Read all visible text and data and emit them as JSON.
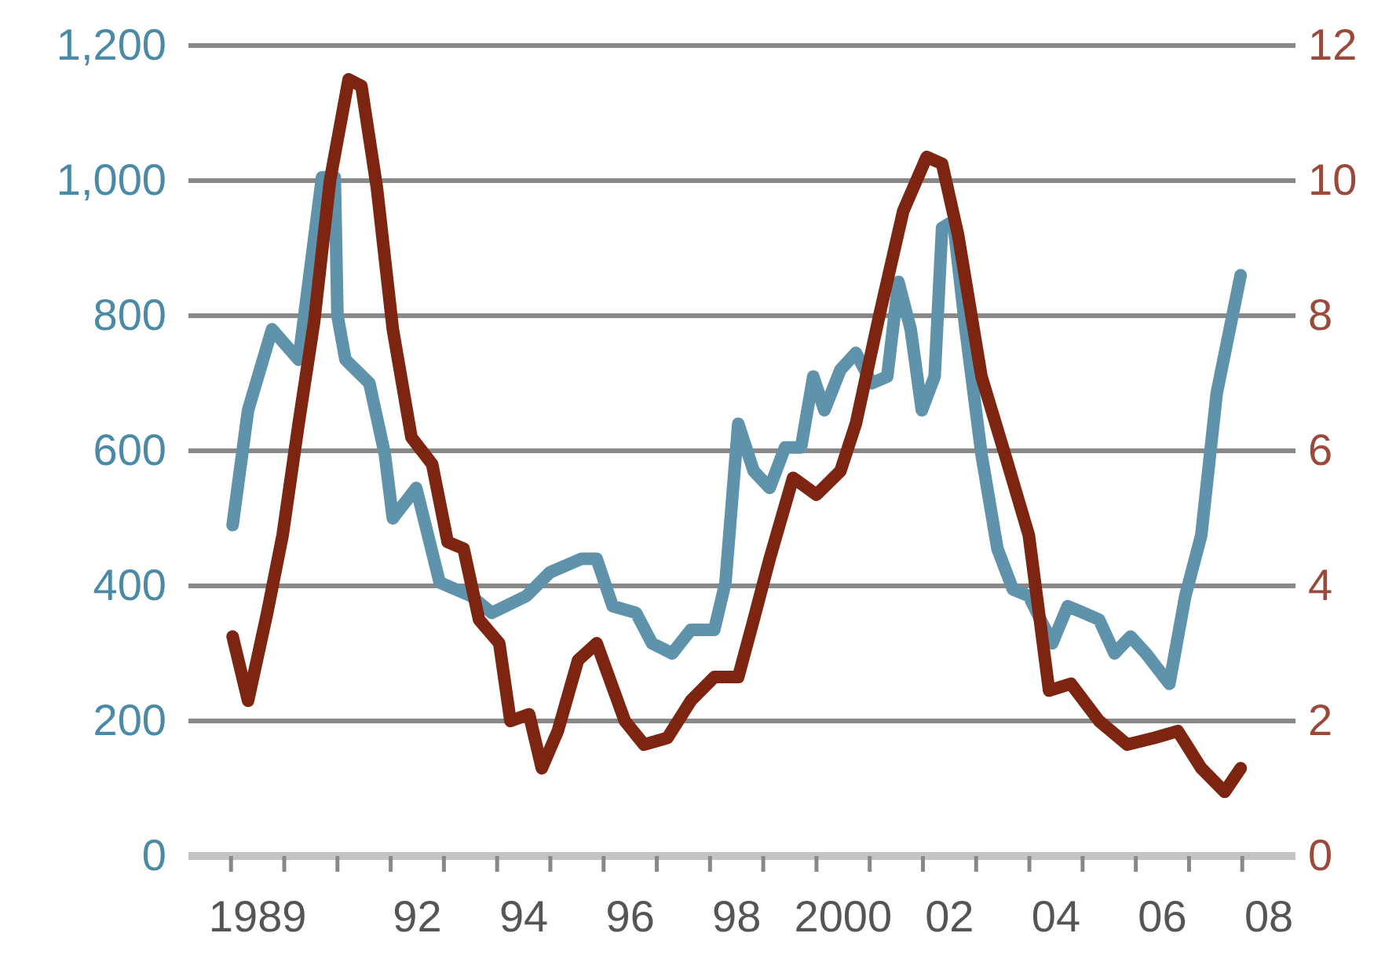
{
  "chart_data": {
    "type": "line",
    "xlim": [
      1987.7,
      2008.5
    ],
    "xticks": [
      {
        "value": 1988.5,
        "label": null
      },
      {
        "value": 1989.5,
        "label": null
      },
      {
        "value": 1990.5,
        "label": null
      },
      {
        "value": 1991.5,
        "label": null
      },
      {
        "value": 1992.5,
        "label": null
      },
      {
        "value": 1993.5,
        "label": null
      },
      {
        "value": 1994.5,
        "label": null
      },
      {
        "value": 1995.5,
        "label": null
      },
      {
        "value": 1996.5,
        "label": null
      },
      {
        "value": 1997.5,
        "label": null
      },
      {
        "value": 1998.5,
        "label": null
      },
      {
        "value": 1999.5,
        "label": null
      },
      {
        "value": 2000.5,
        "label": null
      },
      {
        "value": 2001.5,
        "label": null
      },
      {
        "value": 2002.5,
        "label": null
      },
      {
        "value": 2003.5,
        "label": null
      },
      {
        "value": 2004.5,
        "label": null
      },
      {
        "value": 2005.5,
        "label": null
      },
      {
        "value": 2006.5,
        "label": null
      },
      {
        "value": 2007.5,
        "label": null
      },
      1989,
      {
        "value": 1992,
        "label": "92"
      },
      {
        "value": 1994,
        "label": "94"
      },
      {
        "value": 1996,
        "label": "96"
      },
      {
        "value": 1998,
        "label": "98"
      },
      2000,
      {
        "value": 2002,
        "label": "02"
      },
      {
        "value": 2004,
        "label": "04"
      },
      {
        "value": 2006,
        "label": "06"
      },
      {
        "value": 2008,
        "label": "08"
      }
    ],
    "ylim": [
      0,
      1200
    ],
    "yticks": [
      {
        "value": 0,
        "label": "0"
      },
      {
        "value": 200,
        "label": "200"
      },
      {
        "value": 400,
        "label": "400"
      },
      {
        "value": 600,
        "label": "600"
      },
      {
        "value": 800,
        "label": "800"
      },
      {
        "value": 1000,
        "label": "1,000"
      },
      {
        "value": 1200,
        "label": "1,200"
      }
    ],
    "y2lim": [
      0,
      12
    ],
    "y2ticks": [
      0,
      2,
      4,
      6,
      8,
      10,
      12
    ],
    "grid": "y",
    "series": [
      {
        "color": "#5f93ab",
        "x": [
          1988.53,
          1988.82,
          1989.27,
          1989.77,
          1990.21,
          1990.45,
          1990.5,
          1990.65,
          1991.1,
          1991.39,
          1991.54,
          1991.98,
          1992.42,
          1992.72,
          1993.01,
          1993.4,
          1994.05,
          1994.49,
          1995.08,
          1995.37,
          1995.67,
          1996.11,
          1996.41,
          1996.79,
          1997.14,
          1997.58,
          1997.79,
          1998.03,
          1998.32,
          1998.62,
          1998.91,
          1999.21,
          1999.44,
          1999.65,
          1999.95,
          2000.24,
          2000.54,
          2000.83,
          2001.04,
          2001.27,
          2001.48,
          2001.72,
          2001.86,
          2002.07,
          2002.3,
          2002.6,
          2002.9,
          2003.19,
          2003.49,
          2003.93,
          2004.22,
          2004.52,
          2004.81,
          2005.1,
          2005.4,
          2005.69,
          2006.13,
          2006.43,
          2006.73,
          2007.02,
          2007.47
        ],
        "values": [
          490,
          660,
          780,
          735,
          1005,
          1005,
          800,
          735,
          700,
          595,
          500,
          545,
          405,
          395,
          385,
          360,
          385,
          420,
          440,
          440,
          370,
          360,
          315,
          300,
          335,
          335,
          405,
          640,
          570,
          545,
          605,
          605,
          710,
          660,
          720,
          745,
          700,
          710,
          850,
          780,
          660,
          710,
          930,
          940,
          780,
          595,
          455,
          395,
          385,
          315,
          370,
          360,
          350,
          300,
          325,
          300,
          255,
          385,
          475,
          685,
          860
        ]
      },
      {
        "color": "#7d2511",
        "axis": "y2",
        "x": [
          1988.53,
          1988.82,
          1989.18,
          1989.47,
          1989.77,
          1990.06,
          1990.36,
          1990.71,
          1990.95,
          1991.24,
          1991.54,
          1991.89,
          1992.28,
          1992.57,
          1992.87,
          1993.16,
          1993.54,
          1993.75,
          1994.1,
          1994.34,
          1994.64,
          1995.02,
          1995.37,
          1995.9,
          1996.26,
          1996.7,
          1997.14,
          1997.58,
          1998.03,
          1998.32,
          1998.62,
          1999.06,
          1999.5,
          1999.95,
          2000.24,
          2000.68,
          2001.13,
          2001.57,
          2001.86,
          2002.16,
          2002.6,
          2003.04,
          2003.49,
          2003.87,
          2004.28,
          2004.81,
          2005.34,
          2005.85,
          2006.29,
          2006.73,
          2007.17,
          2007.47
        ],
        "values": [
          3.25,
          2.3,
          3.6,
          4.75,
          6.4,
          7.9,
          10,
          11.5,
          11.4,
          9.9,
          7.8,
          6.2,
          5.8,
          4.65,
          4.55,
          3.5,
          3.15,
          2.0,
          2.1,
          1.3,
          1.85,
          2.9,
          3.15,
          2.0,
          1.65,
          1.75,
          2.3,
          2.65,
          2.65,
          3.5,
          4.4,
          5.6,
          5.35,
          5.7,
          6.4,
          8.0,
          9.55,
          10.35,
          10.25,
          9.2,
          7.1,
          5.95,
          4.75,
          2.45,
          2.55,
          2.0,
          1.65,
          1.75,
          1.85,
          1.3,
          0.95,
          1.3
        ]
      }
    ]
  }
}
